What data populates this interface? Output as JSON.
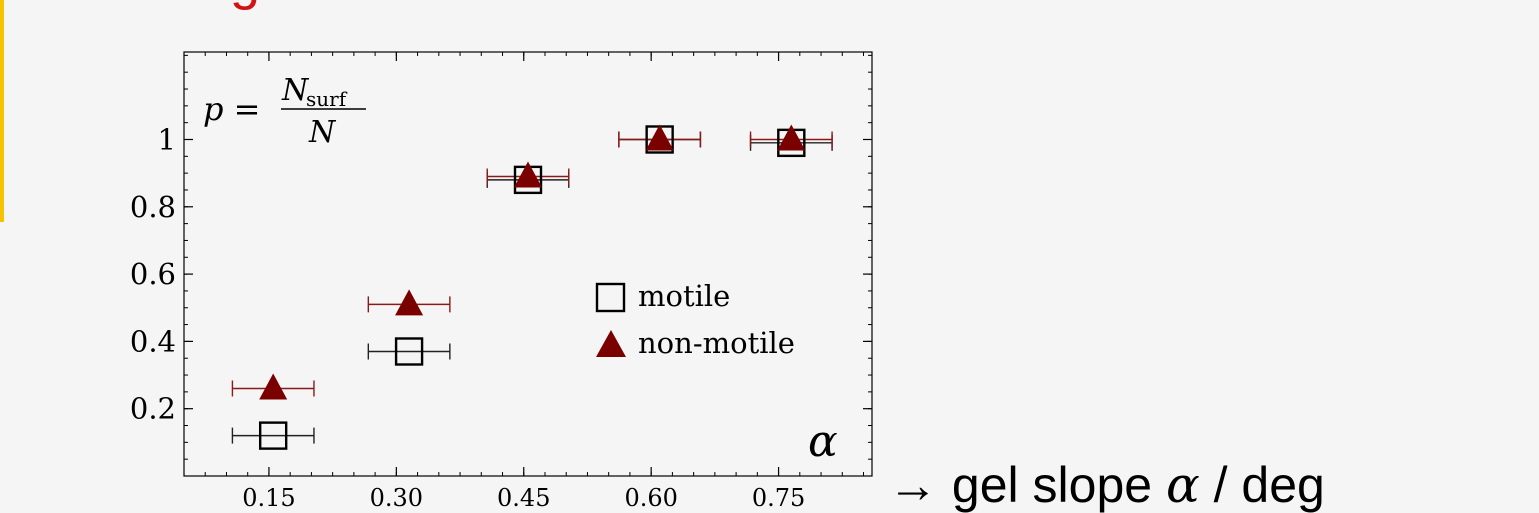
{
  "slide": {
    "title_fragment": "g",
    "x_caption_arrow": "→",
    "x_caption_text": "gel slope",
    "x_caption_symbol": "α",
    "x_caption_unit": "/ deg",
    "colors": {
      "title": "#d11313",
      "accent": "#f5c400",
      "background": "#f5f5f5"
    }
  },
  "chart_data": {
    "type": "scatter",
    "annotation_formula": {
      "lhs": "p =",
      "numerator": "N",
      "numerator_sub": "surf",
      "denominator": "N"
    },
    "axis_symbol": "α",
    "x_ticks": [
      "0.15",
      "0.30",
      "0.45",
      "0.60",
      "0.75"
    ],
    "x_tick_values": [
      0.15,
      0.3,
      0.45,
      0.6,
      0.75
    ],
    "y_ticks": [
      "0.2",
      "0.4",
      "0.6",
      "0.8",
      "1"
    ],
    "y_tick_values": [
      0.2,
      0.4,
      0.6,
      0.8,
      1.0
    ],
    "xlim": [
      0.05,
      0.86
    ],
    "ylim": [
      0.0,
      1.26
    ],
    "legend_position": "right",
    "series": [
      {
        "name": "motile",
        "marker": "open-square",
        "color": "#000000",
        "points": [
          {
            "x": 0.155,
            "y": 0.12,
            "xerr": 0.048
          },
          {
            "x": 0.315,
            "y": 0.37,
            "xerr": 0.048
          },
          {
            "x": 0.455,
            "y": 0.88,
            "xerr": 0.048
          },
          {
            "x": 0.61,
            "y": 1.0,
            "xerr": 0.048
          },
          {
            "x": 0.765,
            "y": 0.99,
            "xerr": 0.048
          }
        ]
      },
      {
        "name": "non-motile",
        "marker": "filled-triangle",
        "color": "#7a0000",
        "points": [
          {
            "x": 0.155,
            "y": 0.26,
            "xerr": 0.048
          },
          {
            "x": 0.315,
            "y": 0.51,
            "xerr": 0.048
          },
          {
            "x": 0.455,
            "y": 0.89,
            "xerr": 0.048
          },
          {
            "x": 0.61,
            "y": 1.0,
            "xerr": 0.048
          },
          {
            "x": 0.765,
            "y": 1.0,
            "xerr": 0.048
          }
        ]
      }
    ]
  }
}
